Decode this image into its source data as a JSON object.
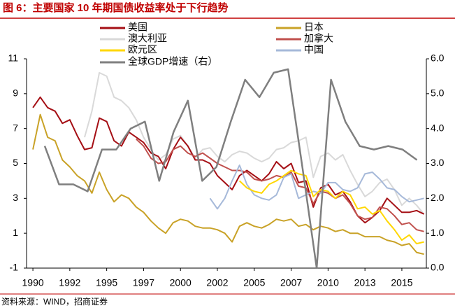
{
  "chart_data": {
    "type": "line",
    "title": "图 6：主要国家 10 年期国债收益率处于下行趋势",
    "source": "资料来源：WIND，招商证券",
    "xlim": [
      1989.57,
      2016.66
    ],
    "xticks": [
      1990,
      {
        "value": 1992.5,
        "label": "1992"
      },
      1995,
      {
        "value": 1997.5,
        "label": "1997"
      },
      2000,
      {
        "value": 2002.5,
        "label": "2002"
      },
      2005,
      {
        "value": 2007.5,
        "label": "2007"
      },
      2010,
      {
        "value": 2012.5,
        "label": "2013"
      },
      2015
    ],
    "ylim": [
      -1,
      11
    ],
    "yticks": [
      -1,
      1,
      3,
      5,
      7,
      9,
      11
    ],
    "y2lim": [
      0,
      6
    ],
    "y2ticks": [
      {
        "value": 0,
        "label": "0.0"
      },
      {
        "value": 1,
        "label": "1.0"
      },
      {
        "value": 2,
        "label": "2.0"
      },
      {
        "value": 3,
        "label": "3.0"
      },
      {
        "value": 4,
        "label": "4.0"
      },
      {
        "value": 5,
        "label": "5.0"
      },
      {
        "value": 6,
        "label": "6.0"
      }
    ],
    "series": [
      {
        "name": "澳大利亚",
        "color": "#d9d9d9",
        "x": [
          1993.5,
          1994,
          1994.5,
          1995,
          1995.5,
          1996,
          1996.5,
          1997,
          1997.5,
          1998,
          1998.5,
          1999,
          1999.5,
          2000,
          2000.5,
          2001,
          2001.5,
          2002,
          2002.5,
          2003,
          2003.5,
          2004,
          2004.5,
          2005,
          2005.5,
          2006,
          2006.5,
          2007,
          2007.5,
          2008,
          2008.5,
          2009,
          2009.5,
          2010,
          2010.5,
          2011,
          2011.5,
          2012,
          2012.5,
          2013,
          2013.5,
          2014,
          2014.5,
          2015,
          2015.5,
          2016,
          2016.5
        ],
        "values": [
          6.5,
          8.0,
          10.2,
          10.0,
          8.8,
          8.6,
          8.2,
          7.5,
          6.5,
          5.8,
          5.2,
          5.5,
          6.4,
          6.6,
          6.0,
          5.3,
          5.8,
          5.9,
          5.4,
          5.1,
          5.5,
          5.7,
          5.6,
          5.3,
          5.1,
          5.3,
          5.8,
          5.9,
          6.2,
          6.3,
          6.5,
          4.2,
          5.4,
          5.6,
          5.2,
          5.5,
          4.6,
          3.8,
          3.1,
          3.4,
          3.9,
          4.1,
          3.5,
          2.6,
          3.0,
          2.6,
          2.1
        ]
      },
      {
        "name": "美国",
        "color": "#a50f15",
        "x": [
          1990,
          1990.5,
          1991,
          1991.5,
          1992,
          1992.5,
          1993,
          1993.5,
          1994,
          1994.5,
          1995,
          1995.5,
          1996,
          1996.5,
          1997,
          1997.5,
          1998,
          1998.5,
          1999,
          1999.5,
          2000,
          2000.5,
          2001,
          2001.5,
          2002,
          2002.5,
          2003,
          2003.5,
          2004,
          2004.5,
          2005,
          2005.5,
          2006,
          2006.5,
          2007,
          2007.5,
          2008,
          2008.5,
          2009,
          2009.5,
          2010,
          2010.5,
          2011,
          2011.5,
          2012,
          2012.5,
          2013,
          2013.5,
          2014,
          2014.5,
          2015,
          2015.5,
          2016,
          2016.5
        ],
        "values": [
          8.2,
          8.8,
          8.2,
          8.0,
          7.3,
          7.5,
          6.6,
          5.8,
          5.9,
          7.6,
          7.4,
          6.3,
          6.0,
          6.8,
          6.5,
          6.2,
          5.6,
          5.4,
          4.7,
          5.8,
          6.5,
          6.0,
          5.2,
          5.2,
          5.0,
          4.3,
          3.9,
          3.5,
          4.3,
          4.6,
          4.3,
          4.0,
          4.4,
          5.1,
          4.7,
          5.0,
          3.9,
          4.0,
          2.5,
          3.6,
          3.8,
          3.2,
          3.4,
          2.8,
          2.0,
          1.6,
          1.9,
          2.3,
          3.0,
          2.6,
          2.2,
          2.2,
          2.3,
          2.1
        ]
      },
      {
        "name": "加拿大",
        "color": "#c0504d",
        "x": [
          1997,
          1997.5,
          1998,
          1998.5,
          1999,
          1999.5,
          2000,
          2000.5,
          2001,
          2001.5,
          2002,
          2002.5,
          2003,
          2003.5,
          2004,
          2004.5,
          2005,
          2005.5,
          2006,
          2006.5,
          2007,
          2007.5,
          2008,
          2008.5,
          2009,
          2009.5,
          2010,
          2010.5,
          2011,
          2011.5,
          2012,
          2012.5,
          2013,
          2013.5,
          2014,
          2014.5,
          2015,
          2015.5,
          2016,
          2016.5
        ],
        "values": [
          6.4,
          6.0,
          5.3,
          5.0,
          5.1,
          5.8,
          6.0,
          5.6,
          5.4,
          5.6,
          5.3,
          5.0,
          4.8,
          4.6,
          4.6,
          4.5,
          4.1,
          4.0,
          4.1,
          4.3,
          4.2,
          4.5,
          3.7,
          3.6,
          2.7,
          3.4,
          3.3,
          3.0,
          3.2,
          2.7,
          2.0,
          1.8,
          1.9,
          2.5,
          2.4,
          2.0,
          1.5,
          1.6,
          1.2,
          1.1
        ]
      },
      {
        "name": "中国",
        "color": "#a6b9d9",
        "x": [
          2002,
          2002.5,
          2003,
          2003.5,
          2004,
          2004.5,
          2005,
          2005.5,
          2006,
          2006.5,
          2007,
          2007.5,
          2008,
          2008.5,
          2009,
          2009.5,
          2010,
          2010.5,
          2011,
          2011.5,
          2012,
          2012.5,
          2013,
          2013.5,
          2014,
          2014.5,
          2015,
          2015.5,
          2016,
          2016.5
        ],
        "values": [
          3.0,
          2.4,
          3.0,
          4.0,
          4.9,
          3.8,
          3.2,
          3.0,
          2.9,
          3.2,
          4.2,
          4.4,
          3.0,
          3.2,
          3.4,
          3.3,
          3.9,
          3.9,
          3.5,
          3.4,
          3.6,
          4.4,
          4.5,
          4.1,
          3.6,
          3.5,
          3.1,
          2.8,
          2.9,
          3.0
        ]
      },
      {
        "name": "欧元区",
        "color": "#ffd700",
        "x": [
          2004,
          2004.5,
          2005,
          2005.5,
          2006,
          2006.5,
          2007,
          2007.5,
          2008,
          2008.5,
          2009,
          2009.5,
          2010,
          2010.5,
          2011,
          2011.5,
          2012,
          2012.5,
          2013,
          2013.5,
          2014,
          2014.5,
          2015,
          2015.5,
          2016,
          2016.5
        ],
        "values": [
          4.0,
          3.6,
          3.4,
          3.3,
          3.8,
          4.0,
          4.3,
          4.6,
          4.4,
          4.3,
          3.1,
          3.5,
          3.4,
          3.0,
          3.4,
          3.2,
          2.4,
          2.5,
          2.1,
          2.3,
          1.7,
          1.2,
          0.6,
          0.9,
          0.4,
          0.5
        ]
      },
      {
        "name": "日本",
        "color": "#c9a227",
        "x": [
          1990,
          1990.5,
          1991,
          1991.5,
          1992,
          1992.5,
          1993,
          1993.5,
          1994,
          1994.5,
          1995,
          1995.5,
          1996,
          1996.5,
          1997,
          1997.5,
          1998,
          1998.5,
          1999,
          1999.5,
          2000,
          2000.5,
          2001,
          2001.5,
          2002,
          2002.5,
          2003,
          2003.5,
          2004,
          2004.5,
          2005,
          2005.5,
          2006,
          2006.5,
          2007,
          2007.5,
          2008,
          2008.5,
          2009,
          2009.5,
          2010,
          2010.5,
          2011,
          2011.5,
          2012,
          2012.5,
          2013,
          2013.5,
          2014,
          2014.5,
          2015,
          2015.5,
          2016,
          2016.5
        ],
        "values": [
          5.8,
          7.8,
          6.5,
          6.3,
          5.2,
          4.8,
          4.3,
          4.0,
          3.3,
          4.5,
          3.5,
          2.8,
          3.2,
          3.0,
          2.5,
          2.2,
          1.7,
          1.3,
          1.0,
          1.6,
          1.8,
          1.7,
          1.4,
          1.3,
          1.3,
          1.2,
          1.0,
          0.5,
          1.4,
          1.6,
          1.4,
          1.3,
          1.5,
          1.8,
          1.7,
          1.8,
          1.4,
          1.5,
          1.2,
          1.4,
          1.3,
          1.1,
          1.2,
          1.0,
          1.0,
          0.8,
          0.8,
          0.8,
          0.6,
          0.5,
          0.3,
          0.4,
          -0.1,
          -0.2
        ]
      },
      {
        "name": "全球GDP增速（右）",
        "color": "#7f7f7f",
        "axis": "y2",
        "x": [
          1990.8,
          1991.77,
          1992.74,
          1993.71,
          1994.68,
          1995.65,
          1996.62,
          1997.59,
          1998.56,
          1999.53,
          2000.5,
          2001.47,
          2002.44,
          2003.41,
          2004.38,
          2005.35,
          2006.32,
          2007.29,
          2008.26,
          2009.23,
          2010.2,
          2011.17,
          2012.14,
          2013.11,
          2014.08,
          2015.05,
          2016.02
        ],
        "values": [
          3.5,
          2.4,
          2.4,
          2.2,
          3.4,
          3.4,
          4.0,
          4.2,
          2.5,
          3.9,
          4.8,
          2.5,
          2.9,
          4.2,
          5.4,
          4.9,
          5.6,
          5.7,
          2.9,
          0.0,
          5.4,
          4.2,
          3.5,
          3.4,
          3.5,
          3.4,
          3.1
        ]
      }
    ]
  }
}
